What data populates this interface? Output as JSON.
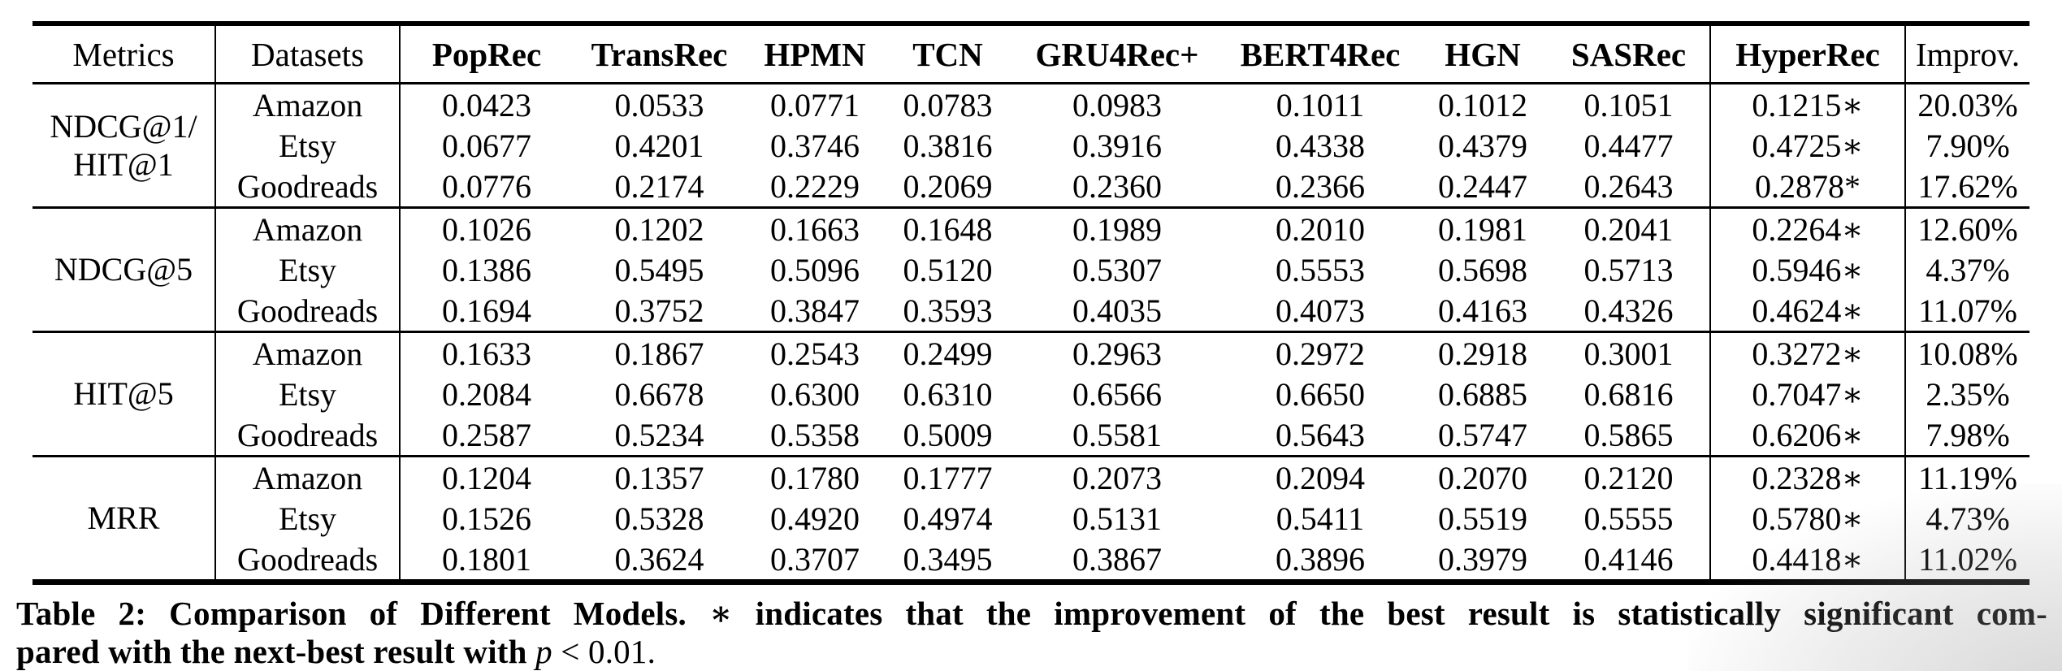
{
  "colors": {
    "text": "#000000",
    "background": "#ffffff",
    "rule": "#000000"
  },
  "table": {
    "columns": [
      "Metrics",
      "Datasets",
      "PopRec",
      "TransRec",
      "HPMN",
      "TCN",
      "GRU4Rec+",
      "BERT4Rec",
      "HGN",
      "SASRec",
      "HyperRec",
      "Improv."
    ],
    "groups": [
      {
        "metric": "NDCG@1/\nHIT@1",
        "rows": [
          {
            "dataset": "Amazon",
            "values": [
              "0.0423",
              "0.0533",
              "0.0771",
              "0.0783",
              "0.0983",
              "0.1011",
              "0.1012",
              "0.1051",
              "0.1215∗",
              "20.03%"
            ]
          },
          {
            "dataset": "Etsy",
            "values": [
              "0.0677",
              "0.4201",
              "0.3746",
              "0.3816",
              "0.3916",
              "0.4338",
              "0.4379",
              "0.4477",
              "0.4725∗",
              "7.90%"
            ]
          },
          {
            "dataset": "Goodreads",
            "values": [
              "0.0776",
              "0.2174",
              "0.2229",
              "0.2069",
              "0.2360",
              "0.2366",
              "0.2447",
              "0.2643",
              "0.2878*",
              "17.62%"
            ]
          }
        ]
      },
      {
        "metric": "NDCG@5",
        "rows": [
          {
            "dataset": "Amazon",
            "values": [
              "0.1026",
              "0.1202",
              "0.1663",
              "0.1648",
              "0.1989",
              "0.2010",
              "0.1981",
              "0.2041",
              "0.2264∗",
              "12.60%"
            ]
          },
          {
            "dataset": "Etsy",
            "values": [
              "0.1386",
              "0.5495",
              "0.5096",
              "0.5120",
              "0.5307",
              "0.5553",
              "0.5698",
              "0.5713",
              "0.5946∗",
              "4.37%"
            ]
          },
          {
            "dataset": "Goodreads",
            "values": [
              "0.1694",
              "0.3752",
              "0.3847",
              "0.3593",
              "0.4035",
              "0.4073",
              "0.4163",
              "0.4326",
              "0.4624∗",
              "11.07%"
            ]
          }
        ]
      },
      {
        "metric": "HIT@5",
        "rows": [
          {
            "dataset": "Amazon",
            "values": [
              "0.1633",
              "0.1867",
              "0.2543",
              "0.2499",
              "0.2963",
              "0.2972",
              "0.2918",
              "0.3001",
              "0.3272∗",
              "10.08%"
            ]
          },
          {
            "dataset": "Etsy",
            "values": [
              "0.2084",
              "0.6678",
              "0.6300",
              "0.6310",
              "0.6566",
              "0.6650",
              "0.6885",
              "0.6816",
              "0.7047∗",
              "2.35%"
            ]
          },
          {
            "dataset": "Goodreads",
            "values": [
              "0.2587",
              "0.5234",
              "0.5358",
              "0.5009",
              "0.5581",
              "0.5643",
              "0.5747",
              "0.5865",
              "0.6206∗",
              "7.98%"
            ]
          }
        ]
      },
      {
        "metric": "MRR",
        "rows": [
          {
            "dataset": "Amazon",
            "values": [
              "0.1204",
              "0.1357",
              "0.1780",
              "0.1777",
              "0.2073",
              "0.2094",
              "0.2070",
              "0.2120",
              "0.2328∗",
              "11.19%"
            ]
          },
          {
            "dataset": "Etsy",
            "values": [
              "0.1526",
              "0.5328",
              "0.4920",
              "0.4974",
              "0.5131",
              "0.5411",
              "0.5519",
              "0.5555",
              "0.5780∗",
              "4.73%"
            ]
          },
          {
            "dataset": "Goodreads",
            "values": [
              "0.1801",
              "0.3624",
              "0.3707",
              "0.3495",
              "0.3867",
              "0.3896",
              "0.3979",
              "0.4146",
              "0.4418∗",
              "11.02%"
            ]
          }
        ]
      }
    ]
  },
  "caption": {
    "line1": "Table 2: Comparison of Different Models. ∗ indicates that the improvement of the best result is statistically significant com-",
    "line2_before_p": "pared with the next-best result with ",
    "line2_p": "p",
    "line2_after_p": " < 0.01."
  }
}
